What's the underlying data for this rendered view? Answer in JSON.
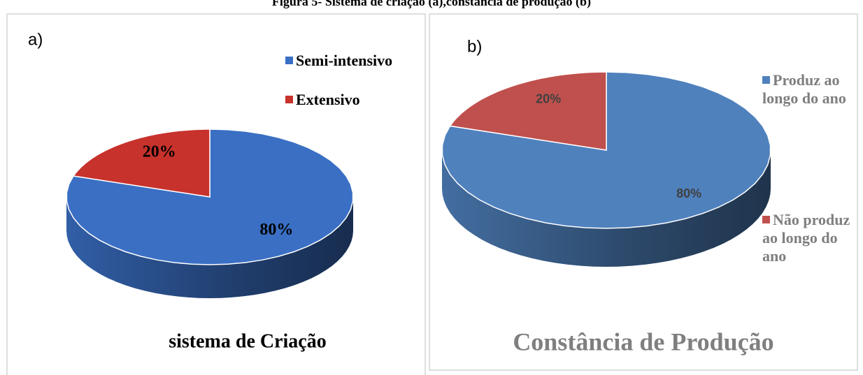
{
  "caption": "Figura 5- Sistema de criação (a),constância de produção (b)",
  "chart_data": [
    {
      "type": "pie",
      "label": "a)",
      "title": "sistema de Criação",
      "categories": [
        "Semi-intensivo",
        "Extensivo"
      ],
      "values": [
        80,
        20
      ],
      "value_labels": [
        "80%",
        "20%"
      ],
      "colors": [
        "#3a6fc4",
        "#c7322c"
      ]
    },
    {
      "type": "pie",
      "label": "b)",
      "title": "Constância de Produção",
      "categories": [
        "Produz ao longo do ano",
        "Não produz ao longo do ano"
      ],
      "values": [
        80,
        20
      ],
      "value_labels": [
        "80%",
        "20%"
      ],
      "colors": [
        "#4f81bd",
        "#c0504d"
      ]
    }
  ]
}
